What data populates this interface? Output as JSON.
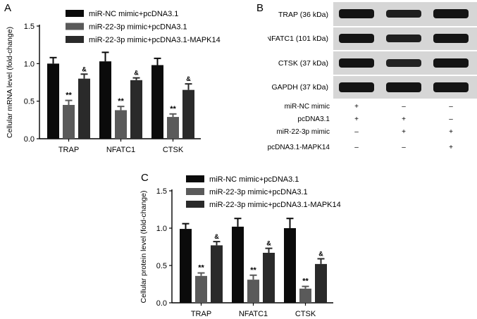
{
  "panels": {
    "a": "A",
    "b": "B",
    "c": "C"
  },
  "colors": {
    "series": [
      "#0b0b0b",
      "#5a5a5a",
      "#2a2a2a"
    ],
    "blot_background": "#d6d6d6",
    "band": "#141414"
  },
  "chart_data": [
    {
      "type": "bar",
      "ylabel": "Cellular mRNA level (fold-change)",
      "categories": [
        "TRAP",
        "NFATC1",
        "CTSK"
      ],
      "ylim": [
        0,
        1.5
      ],
      "yticks": [
        "0.0",
        "0.5",
        "1.0",
        "1.5"
      ],
      "legend_position": "top",
      "series": [
        {
          "name": "miR-NC mimic+pcDNA3.1",
          "values": [
            1.0,
            1.03,
            0.98
          ],
          "errors": [
            0.08,
            0.12,
            0.09
          ],
          "marks": [
            "",
            "",
            ""
          ]
        },
        {
          "name": "miR-22-3p mimic+pcDNA3.1",
          "values": [
            0.45,
            0.38,
            0.29
          ],
          "errors": [
            0.06,
            0.05,
            0.04
          ],
          "marks": [
            "**",
            "**",
            "**"
          ]
        },
        {
          "name": "miR-22-3p mimic+pcDNA3.1-MAPK14",
          "values": [
            0.8,
            0.78,
            0.65
          ],
          "errors": [
            0.06,
            0.03,
            0.08
          ],
          "marks": [
            "&",
            "&",
            "&"
          ]
        }
      ]
    },
    {
      "type": "bar",
      "ylabel": "Cellular protein level (fold-change)",
      "categories": [
        "TRAP",
        "NFATC1",
        "CTSK"
      ],
      "ylim": [
        0,
        1.5
      ],
      "yticks": [
        "0.0",
        "0.5",
        "1.0",
        "1.5"
      ],
      "legend_position": "top",
      "series": [
        {
          "name": "miR-NC mimic+pcDNA3.1",
          "values": [
            0.99,
            1.02,
            1.0
          ],
          "errors": [
            0.07,
            0.11,
            0.13
          ],
          "marks": [
            "",
            "",
            ""
          ]
        },
        {
          "name": "miR-22-3p mimic+pcDNA3.1",
          "values": [
            0.36,
            0.31,
            0.19
          ],
          "errors": [
            0.04,
            0.06,
            0.03
          ],
          "marks": [
            "**",
            "**",
            "**"
          ]
        },
        {
          "name": "miR-22-3p mimic+pcDNA3.1-MAPK14",
          "values": [
            0.77,
            0.67,
            0.52
          ],
          "errors": [
            0.05,
            0.06,
            0.07
          ],
          "marks": [
            "&",
            "&",
            "&"
          ]
        }
      ]
    }
  ],
  "blot": {
    "bands": [
      "TRAP (36 kDa)",
      "NFATC1 (101 kDa)",
      "CTSK (37 kDa)",
      "GAPDH (37 kDa)"
    ],
    "conditions": [
      {
        "label": "miR-NC mimic",
        "signs": [
          "+",
          "–",
          "–"
        ]
      },
      {
        "label": "pcDNA3.1",
        "signs": [
          "+",
          "+",
          "–"
        ]
      },
      {
        "label": "miR-22-3p mimic",
        "signs": [
          "–",
          "+",
          "+"
        ]
      },
      {
        "label": "pcDNA3.1-MAPK14",
        "signs": [
          "–",
          "–",
          "+"
        ]
      }
    ]
  }
}
